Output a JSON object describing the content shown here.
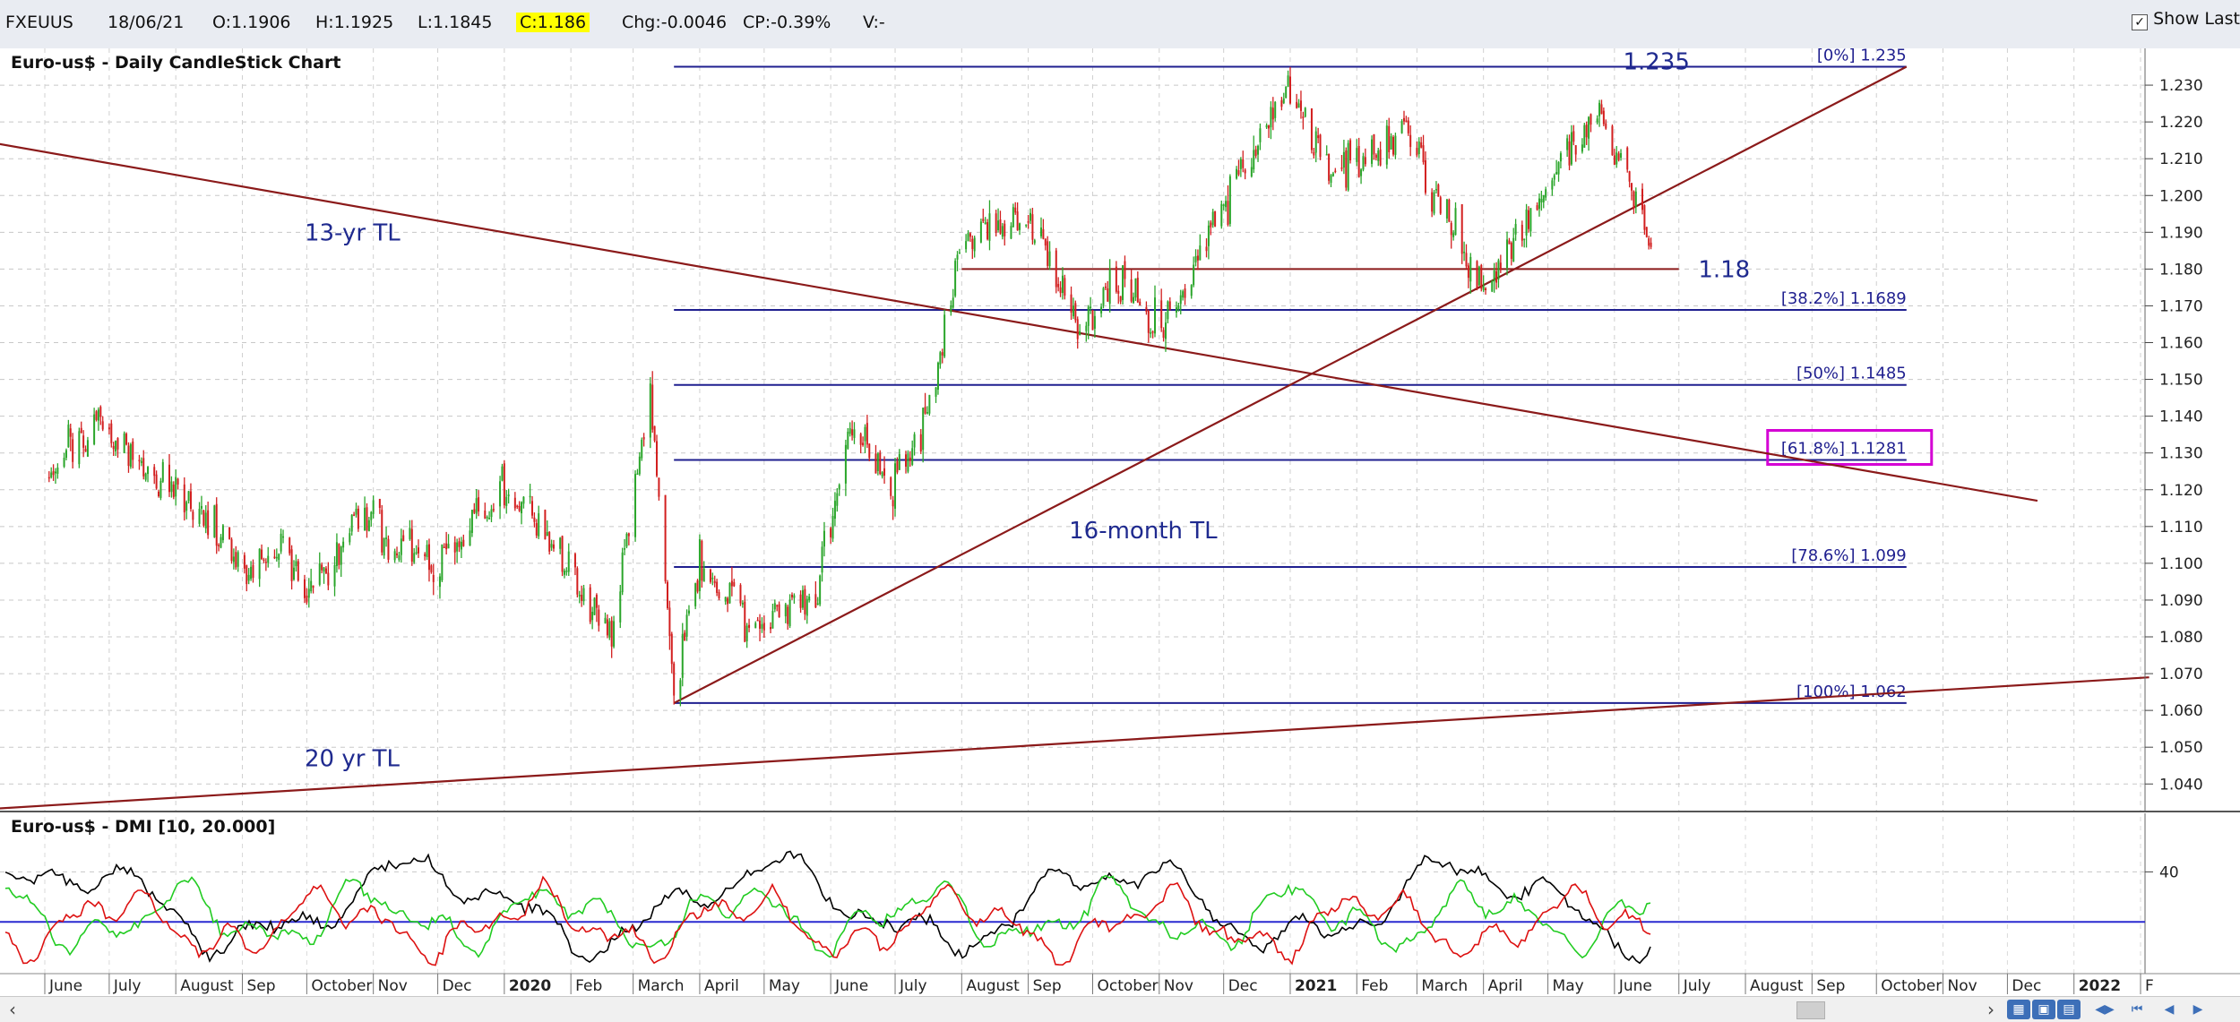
{
  "infobar": {
    "symbol": "FXEUUS",
    "date": "18/06/21",
    "open": "O:1.1906",
    "high": "H:1.1925",
    "low": "L:1.1845",
    "close": "C:1.186",
    "change": "Chg:-0.0046",
    "change_pct": "CP:-0.39%",
    "volume": "V:-",
    "show_last_label": "Show Last",
    "show_last_checked": "✓"
  },
  "chart_data": [
    {
      "type": "candlestick",
      "title": "Euro-us$ - Daily CandleStick Chart",
      "ylim": [
        1.033,
        1.24
      ],
      "yticks": [
        "1.230",
        "1.220",
        "1.210",
        "1.200",
        "1.190",
        "1.180",
        "1.170",
        "1.160",
        "1.150",
        "1.140",
        "1.130",
        "1.120",
        "1.110",
        "1.100",
        "1.090",
        "1.080",
        "1.070",
        "1.060",
        "1.050",
        "1.040"
      ],
      "x_labels": [
        "June",
        "July",
        "August",
        "Sep",
        "October",
        "Nov",
        "Dec",
        "2020",
        "Feb",
        "March",
        "April",
        "May",
        "June",
        "July",
        "August",
        "Sep",
        "October",
        "Nov",
        "Dec",
        "2021",
        "Feb",
        "March",
        "April",
        "May",
        "June",
        "July",
        "August",
        "Sep",
        "October",
        "Nov",
        "Dec",
        "2022",
        "F"
      ],
      "bold_labels": [
        "2020",
        "2021",
        "2022"
      ],
      "price_path": [
        [
          "2019-06-01",
          1.122
        ],
        [
          "2019-06-25",
          1.139
        ],
        [
          "2019-07-20",
          1.124
        ],
        [
          "2019-08-10",
          1.117
        ],
        [
          "2019-09-01",
          1.098
        ],
        [
          "2019-09-20",
          1.104
        ],
        [
          "2019-10-01",
          1.091
        ],
        [
          "2019-10-25",
          1.112
        ],
        [
          "2019-11-30",
          1.1
        ],
        [
          "2019-12-31",
          1.121
        ],
        [
          "2020-01-25",
          1.104
        ],
        [
          "2020-02-20",
          1.08
        ],
        [
          "2020-03-09",
          1.147
        ],
        [
          "2020-03-20",
          1.064
        ],
        [
          "2020-04-01",
          1.1
        ],
        [
          "2020-04-25",
          1.082
        ],
        [
          "2020-05-25",
          1.092
        ],
        [
          "2020-06-10",
          1.139
        ],
        [
          "2020-06-30",
          1.121
        ],
        [
          "2020-07-15",
          1.138
        ],
        [
          "2020-08-01",
          1.187
        ],
        [
          "2020-08-31",
          1.195
        ],
        [
          "2020-09-25",
          1.164
        ],
        [
          "2020-10-15",
          1.177
        ],
        [
          "2020-11-04",
          1.164
        ],
        [
          "2020-11-30",
          1.195
        ],
        [
          "2020-12-31",
          1.231
        ],
        [
          "2021-01-18",
          1.207
        ],
        [
          "2021-02-25",
          1.216
        ],
        [
          "2021-03-31",
          1.173
        ],
        [
          "2021-05-25",
          1.224
        ],
        [
          "2021-06-18",
          1.186
        ]
      ],
      "fibonacci": [
        {
          "label": "[0%] 1.235",
          "value": 1.235
        },
        {
          "label": "[38.2%] 1.1689",
          "value": 1.1689
        },
        {
          "label": "[50%] 1.1485",
          "value": 1.1485
        },
        {
          "label": "[61.8%] 1.1281",
          "value": 1.1281
        },
        {
          "label": "[78.6%] 1.099",
          "value": 1.099
        },
        {
          "label": "[100%] 1.062",
          "value": 1.062
        }
      ],
      "fib_range": [
        "2020-03-20",
        "2021-10-15"
      ],
      "highlight_level": "[61.8%] 1.1281",
      "horizontal_level": {
        "value": 1.18,
        "from": "2020-08-01",
        "to": "2021-07-01",
        "label": "1.18"
      },
      "trendlines": [
        {
          "name": "13-yr TL",
          "from": [
            "2019-05-01",
            1.215
          ],
          "to": [
            "2021-12-15",
            1.117
          ]
        },
        {
          "name": "16-month TL",
          "from": [
            "2020-03-20",
            1.062
          ],
          "to": [
            "2021-10-15",
            1.235
          ]
        },
        {
          "name": "20 yr TL",
          "from": [
            "2019-05-01",
            1.033
          ],
          "to": [
            "2022-02-05",
            1.069
          ]
        }
      ],
      "annotations": [
        {
          "text": "1.235",
          "at": [
            "2021-06-05",
            1.2365
          ]
        },
        {
          "text": "13-yr TL",
          "at": [
            "2019-09-30",
            1.19
          ]
        },
        {
          "text": "1.18",
          "at": [
            "2021-07-10",
            1.18
          ]
        },
        {
          "text": "16-month TL",
          "at": [
            "2020-09-20",
            1.109
          ]
        },
        {
          "text": "20 yr TL",
          "at": [
            "2019-09-30",
            1.047
          ]
        }
      ],
      "colors": {
        "up": "#2aa52a",
        "down": "#d21f1f",
        "fib": "#1f1f8f",
        "trendline": "#8b1a1a",
        "highlight": "#d400d4"
      }
    },
    {
      "type": "line",
      "title": "Euro-us$ - DMI [10, 20.000]",
      "yticks": [
        "40"
      ],
      "ylim": [
        0,
        62
      ],
      "reference_level": 20,
      "series": [
        {
          "name": "ADX",
          "color": "#000000"
        },
        {
          "name": "+DI",
          "color": "#22cc22"
        },
        {
          "name": "-DI",
          "color": "#dd1111"
        }
      ]
    }
  ]
}
